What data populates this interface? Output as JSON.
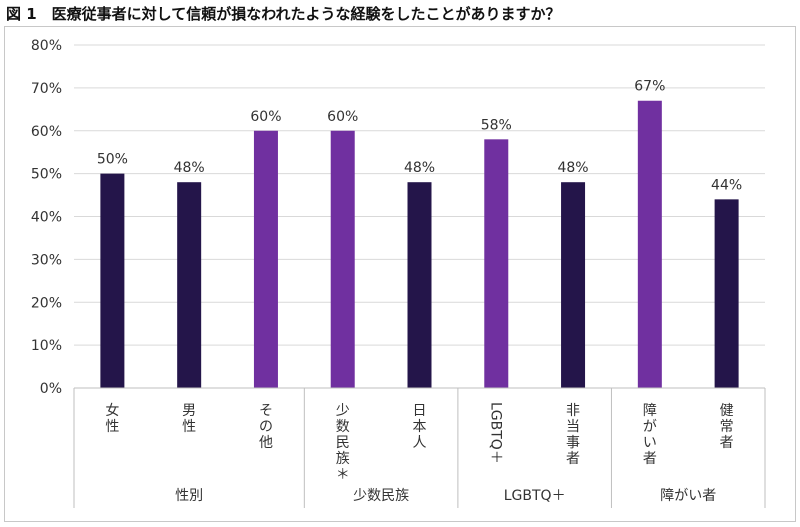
{
  "title": "図 1　医療従事者に対して信頼が損なわれたような経験をしたことがありますか？",
  "colors": {
    "dark": "#24154a",
    "purple": "#7030a0",
    "grid": "#d9d9d9",
    "axis": "#bfbfbf"
  },
  "chart_data": {
    "type": "bar",
    "title": "図 1　医療従事者に対して信頼が損なわれたような経験をしたことがありますか？",
    "xlabel": "",
    "ylabel": "",
    "ylim": [
      0,
      80
    ],
    "yticks": [
      "0%",
      "10%",
      "20%",
      "30%",
      "40%",
      "50%",
      "60%",
      "70%",
      "80%"
    ],
    "grid": true,
    "legend": "none",
    "categories": [
      "女性",
      "男性",
      "その他",
      "少数民族＊",
      "日本人",
      "LGBTQ＋",
      "非当事者",
      "障がい者",
      "健常者"
    ],
    "values": [
      50,
      48,
      60,
      60,
      48,
      58,
      48,
      67,
      44
    ],
    "value_labels": [
      "50%",
      "48%",
      "60%",
      "60%",
      "48%",
      "58%",
      "48%",
      "67%",
      "44%"
    ],
    "bar_colors": [
      "dark",
      "dark",
      "purple",
      "purple",
      "dark",
      "purple",
      "dark",
      "purple",
      "dark"
    ],
    "groups": [
      {
        "label": "性別",
        "start": 0,
        "end": 2
      },
      {
        "label": "少数民族",
        "start": 3,
        "end": 4
      },
      {
        "label": "LGBTQ＋",
        "start": 5,
        "end": 6
      },
      {
        "label": "障がい者",
        "start": 7,
        "end": 8
      }
    ]
  }
}
